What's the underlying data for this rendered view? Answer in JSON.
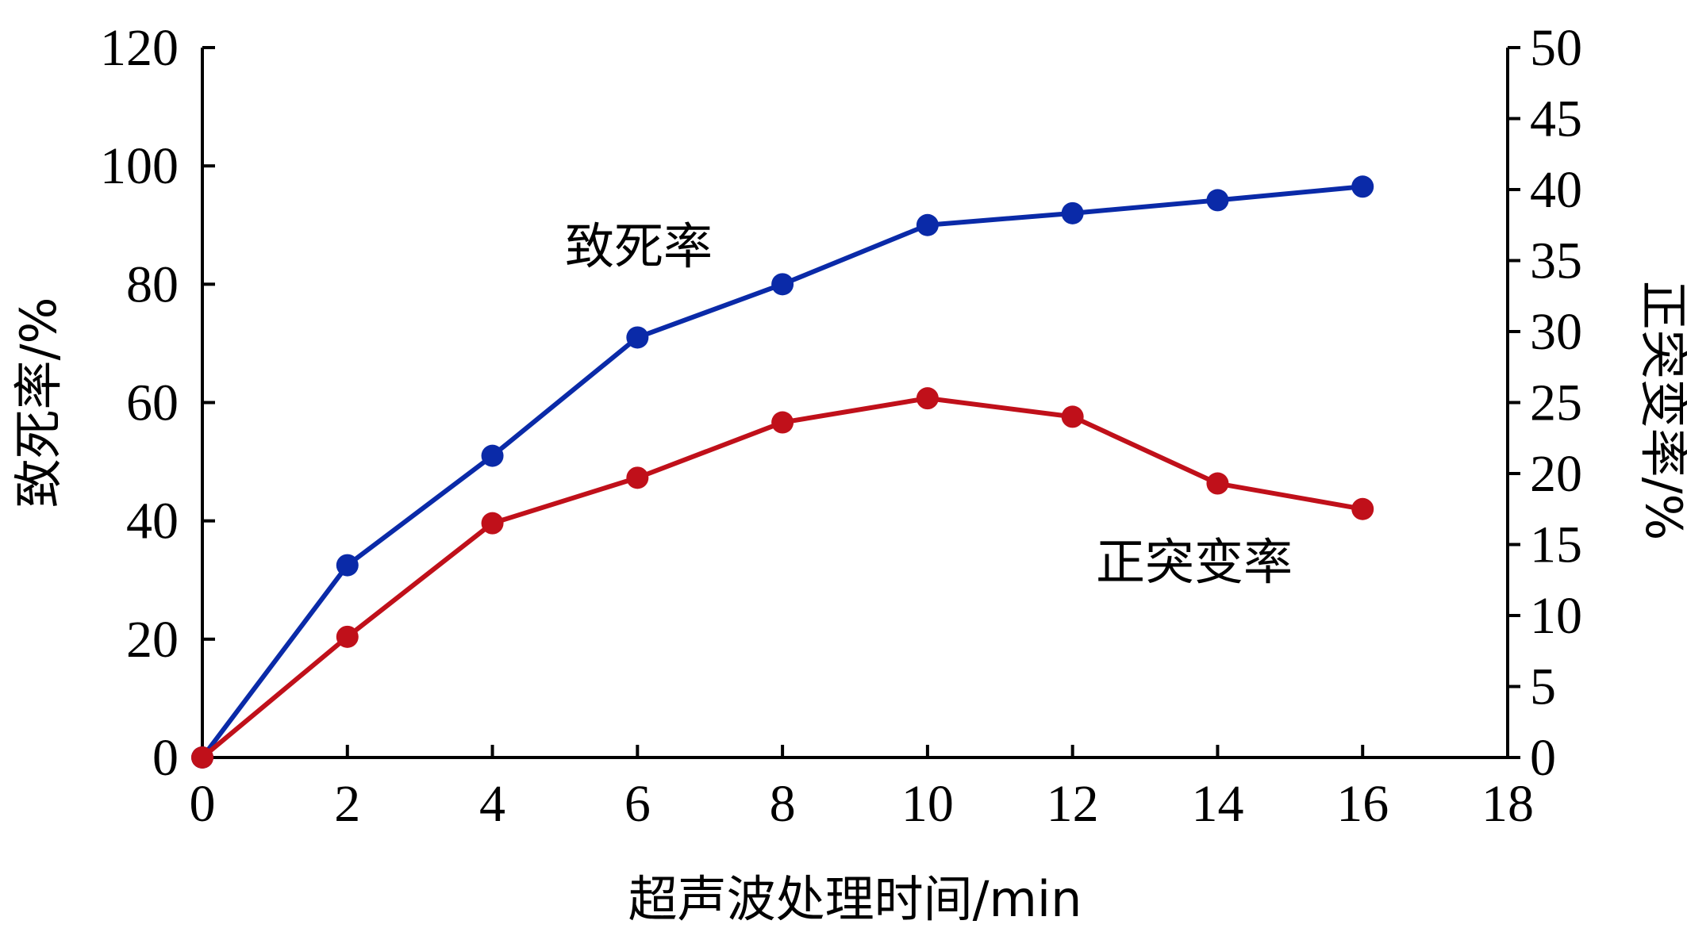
{
  "chart_data": {
    "type": "line",
    "x": [
      0,
      2,
      4,
      6,
      8,
      10,
      12,
      14,
      16
    ],
    "xlabel": "超声波处理时间/min",
    "xlim": [
      0,
      18
    ],
    "xticks": [
      "0",
      "2",
      "4",
      "6",
      "8",
      "10",
      "12",
      "14",
      "16",
      "18"
    ],
    "y_left": {
      "label": "致死率/%",
      "lim": [
        0,
        120
      ],
      "ticks": [
        "0",
        "20",
        "40",
        "60",
        "80",
        "100",
        "120"
      ]
    },
    "y_right": {
      "label": "正突变率/%",
      "lim": [
        0,
        50
      ],
      "ticks": [
        "0",
        "5",
        "10",
        "15",
        "20",
        "25",
        "30",
        "35",
        "40",
        "45",
        "50"
      ]
    },
    "series": [
      {
        "name": "致死率",
        "axis": "left",
        "color": "#0a2aa8",
        "values": [
          0,
          32.5,
          51,
          71,
          80,
          90,
          92,
          94.2,
          96.5
        ]
      },
      {
        "name": "正突变率",
        "axis": "right",
        "color": "#c0101a",
        "values": [
          0,
          8.5,
          16.5,
          19.7,
          23.6,
          25.3,
          24.0,
          19.3,
          17.5
        ]
      }
    ],
    "grid": false,
    "legend": "none"
  }
}
